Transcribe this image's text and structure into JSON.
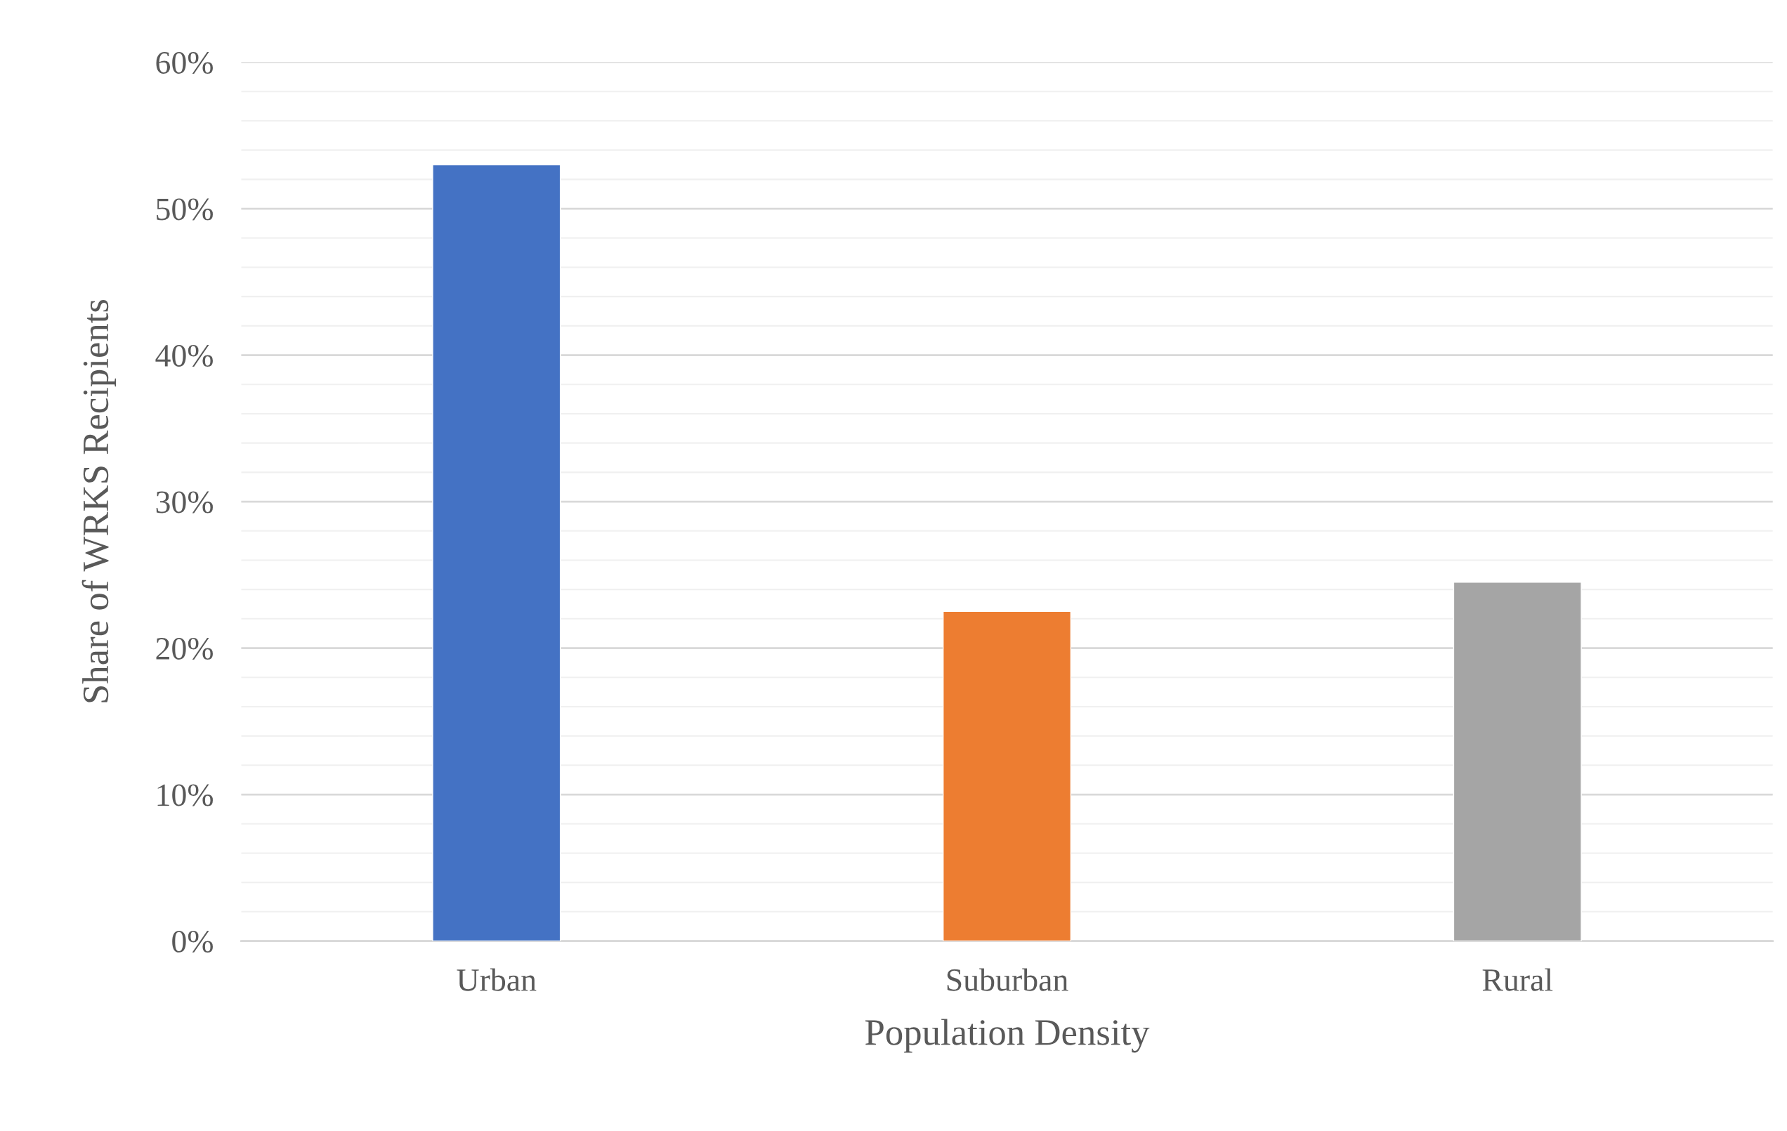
{
  "chart_data": {
    "type": "bar",
    "xlabel": "Population Density",
    "ylabel": "Share of WRKS Recipients",
    "categories": [
      "Urban",
      "Suburban",
      "Rural"
    ],
    "values": [
      53,
      22.5,
      24.5
    ],
    "colors": [
      "#4472c4",
      "#ed7d31",
      "#a5a5a5"
    ],
    "ylim": [
      0,
      60
    ],
    "yticks": [
      {
        "value": 0,
        "label": "0%"
      },
      {
        "value": 10,
        "label": "10%"
      },
      {
        "value": 20,
        "label": "20%"
      },
      {
        "value": 30,
        "label": "30%"
      },
      {
        "value": 40,
        "label": "40%"
      },
      {
        "value": 50,
        "label": "50%"
      },
      {
        "value": 60,
        "label": "60%"
      }
    ],
    "grid": "y"
  }
}
